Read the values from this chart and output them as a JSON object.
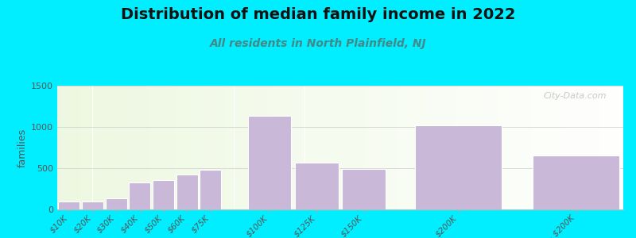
{
  "title": "Distribution of median family income in 2022",
  "subtitle": "All residents in North Plainfield, NJ",
  "ylabel": "families",
  "categories": [
    "$10K",
    "$20K",
    "$30K",
    "$40K",
    "$50K",
    "$60K",
    "$75K",
    "$100K",
    "$125K",
    "$150K",
    "$200K",
    "> $200K"
  ],
  "values": [
    100,
    100,
    130,
    330,
    360,
    420,
    480,
    1130,
    570,
    490,
    1020,
    655
  ],
  "bar_color": "#c9b8d8",
  "bar_edge_color": "#ffffff",
  "background_color": "#00eeff",
  "ylim": [
    0,
    1500
  ],
  "yticks": [
    0,
    500,
    1000,
    1500
  ],
  "title_fontsize": 14,
  "subtitle_fontsize": 10,
  "ylabel_fontsize": 9,
  "watermark": "City-Data.com",
  "grid_color": "#cccccc",
  "left_edges": [
    0,
    1,
    2,
    3,
    4,
    5,
    6,
    8,
    10,
    12,
    15,
    20
  ],
  "bar_widths": [
    1,
    1,
    1,
    1,
    1,
    1,
    1,
    2,
    2,
    2,
    4,
    4
  ]
}
